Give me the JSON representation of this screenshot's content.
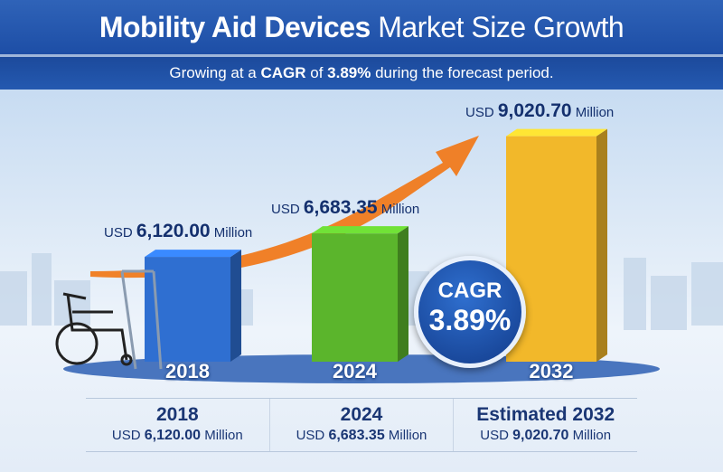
{
  "header": {
    "title_bold": "Mobility Aid Devices",
    "title_light": "Market Size Growth",
    "subtitle_pre": "Growing at a ",
    "subtitle_cagr_label": "CAGR",
    "subtitle_mid": " of ",
    "subtitle_cagr_value": "3.89%",
    "subtitle_post": " during the forecast period."
  },
  "badge": {
    "label": "CAGR",
    "value": "3.89%"
  },
  "chart_data": {
    "type": "bar",
    "title": "Mobility Aid Devices Market Size Growth",
    "categories": [
      "2018",
      "2024",
      "2032"
    ],
    "values": [
      6120.0,
      6683.35,
      9020.7
    ],
    "unit": "USD Million",
    "data_labels": [
      {
        "prefix": "USD",
        "value": "6,120.00",
        "suffix": "Million"
      },
      {
        "prefix": "USD",
        "value": "6,683.35",
        "suffix": "Million"
      },
      {
        "prefix": "USD",
        "value": "9,020.70",
        "suffix": "Million"
      }
    ],
    "colors": [
      "#2f6fd1",
      "#5bb52c",
      "#f2b82a"
    ],
    "trend_arrow_color": "#f07a1c",
    "cagr": "3.89%"
  },
  "summary": [
    {
      "year": "2018",
      "prefix": "USD",
      "value": "6,120.00",
      "suffix": "Million"
    },
    {
      "year": "2024",
      "prefix": "USD",
      "value": "6,683.35",
      "suffix": "Million"
    },
    {
      "year": "Estimated 2032",
      "prefix": "USD",
      "value": "9,020.70",
      "suffix": "Million"
    }
  ]
}
